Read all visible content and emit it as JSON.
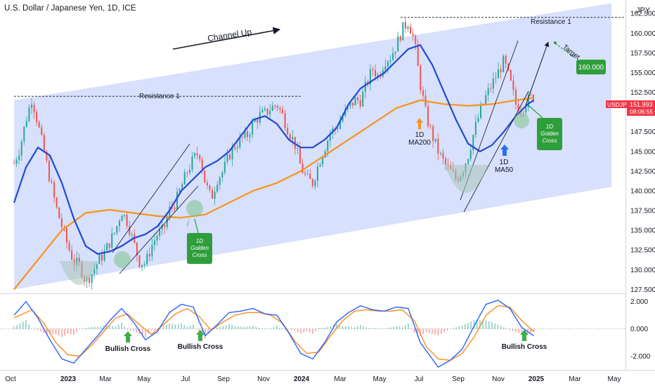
{
  "header": {
    "title": "U.S. Dollar / Japanese Yen, 1D, ICE",
    "currency": "JPY"
  },
  "price_tag": {
    "symbol": "USDJPY",
    "price": "151.993",
    "countdown": "08:06:55"
  },
  "annotations": {
    "channel_up": "Channel Up",
    "resistance_left": "Resistance 1",
    "resistance_right": "Resistance 1",
    "target_word": "Target",
    "target_value": "160.000",
    "ma200_label": [
      "1D",
      "MA200"
    ],
    "ma50_label": [
      "1D",
      "MA50"
    ],
    "golden_cross_1": [
      "1D",
      "Golden",
      "Cross"
    ],
    "golden_cross_2": [
      "1D",
      "Golden",
      "Cross"
    ],
    "bullish_cross_1": "Bullish Cross",
    "bullish_cross_2": "Bullish Cross",
    "bullish_cross_3": "Bullish Cross"
  },
  "colors": {
    "channel_fill": "#c9d6fb",
    "ma50": "#2249d3",
    "ma200": "#f7931a",
    "up_candle": "#26a69a",
    "down_candle": "#ef5350",
    "green_box": "#2e9e3a",
    "green_arrow": "#3cae4a",
    "orange_arrow": "#f7931a",
    "blue_arrow": "#2a6cf0",
    "price_tag": "#f23645",
    "macd": "#2962ff",
    "signal": "#ff8a1c"
  },
  "chart_data": {
    "type": "candlestick",
    "title": "U.S. Dollar / Japanese Yen, 1D, ICE",
    "x_ticks": [
      "Oct",
      "2023",
      "Mar",
      "May",
      "Jul",
      "Sep",
      "Nov",
      "2024",
      "Mar",
      "May",
      "Jul",
      "Sep",
      "Nov",
      "2025",
      "Mar",
      "May"
    ],
    "y_ticks": [
      "162.500",
      "160.000",
      "157.500",
      "155.000",
      "152.500",
      "150.000",
      "147.500",
      "145.000",
      "142.500",
      "140.000",
      "137.500",
      "135.000",
      "132.500",
      "130.000",
      "127.500"
    ],
    "ylim": [
      127,
      163.5
    ],
    "price_path": [
      [
        0,
        143.5
      ],
      [
        1,
        145.5
      ],
      [
        2,
        149.0
      ],
      [
        3,
        151.8
      ],
      [
        4,
        148.5
      ],
      [
        5,
        145.0
      ],
      [
        6,
        141.5
      ],
      [
        7,
        138.0
      ],
      [
        8,
        135.5
      ],
      [
        9,
        133.0
      ],
      [
        10,
        131.0
      ],
      [
        11,
        130.5
      ],
      [
        12,
        128.5
      ],
      [
        13,
        129.5
      ],
      [
        14,
        131.0
      ],
      [
        15,
        132.0
      ],
      [
        16,
        133.5
      ],
      [
        17,
        135.0
      ],
      [
        18,
        137.5
      ],
      [
        19,
        136.0
      ],
      [
        20,
        133.5
      ],
      [
        21,
        131.0
      ],
      [
        22,
        130.8
      ],
      [
        23,
        133.0
      ],
      [
        24,
        134.5
      ],
      [
        25,
        135.0
      ],
      [
        26,
        137.5
      ],
      [
        27,
        138.5
      ],
      [
        28,
        140.5
      ],
      [
        29,
        142.5
      ],
      [
        30,
        144.0
      ],
      [
        31,
        145.0
      ],
      [
        32,
        141.0
      ],
      [
        33,
        139.0
      ],
      [
        34,
        141.5
      ],
      [
        35,
        142.5
      ],
      [
        36,
        144.5
      ],
      [
        37,
        145.8
      ],
      [
        38,
        146.5
      ],
      [
        39,
        147.0
      ],
      [
        40,
        148.5
      ],
      [
        41,
        149.5
      ],
      [
        42,
        149.8
      ],
      [
        43,
        150.5
      ],
      [
        44,
        151.0
      ],
      [
        45,
        149.5
      ],
      [
        46,
        147.5
      ],
      [
        47,
        146.0
      ],
      [
        48,
        143.0
      ],
      [
        49,
        141.5
      ],
      [
        50,
        141.0
      ],
      [
        51,
        143.5
      ],
      [
        52,
        145.5
      ],
      [
        53,
        147.5
      ],
      [
        54,
        148.0
      ],
      [
        55,
        149.5
      ],
      [
        56,
        150.5
      ],
      [
        57,
        151.5
      ],
      [
        58,
        151.5
      ],
      [
        59,
        153.5
      ],
      [
        60,
        155.5
      ],
      [
        61,
        154.5
      ],
      [
        62,
        156.5
      ],
      [
        63,
        157.0
      ],
      [
        64,
        158.5
      ],
      [
        65,
        160.5
      ],
      [
        66,
        161.5
      ],
      [
        67,
        159.0
      ],
      [
        68,
        153.5
      ],
      [
        69,
        149.5
      ],
      [
        70,
        147.0
      ],
      [
        71,
        145.0
      ],
      [
        72,
        143.5
      ],
      [
        73,
        142.5
      ],
      [
        74,
        141.5
      ],
      [
        75,
        142.5
      ],
      [
        76,
        144.5
      ],
      [
        77,
        147.5
      ],
      [
        78,
        150.0
      ],
      [
        79,
        152.0
      ],
      [
        80,
        153.5
      ],
      [
        81,
        155.0
      ],
      [
        82,
        156.5
      ],
      [
        83,
        154.0
      ],
      [
        84,
        151.0
      ],
      [
        85,
        150.5
      ],
      [
        86,
        151.5
      ],
      [
        87,
        152.0
      ]
    ],
    "ma200_path": [
      [
        0,
        127.5
      ],
      [
        8,
        135.0
      ],
      [
        12,
        137.2
      ],
      [
        16,
        137.6
      ],
      [
        20,
        137.2
      ],
      [
        24,
        136.8
      ],
      [
        28,
        136.6
      ],
      [
        32,
        137.0
      ],
      [
        36,
        138.5
      ],
      [
        40,
        140.0
      ],
      [
        44,
        141.0
      ],
      [
        48,
        142.5
      ],
      [
        52,
        144.5
      ],
      [
        56,
        146.5
      ],
      [
        60,
        148.5
      ],
      [
        64,
        150.5
      ],
      [
        68,
        151.5
      ],
      [
        72,
        151.0
      ],
      [
        76,
        150.8
      ],
      [
        80,
        151.0
      ],
      [
        84,
        151.5
      ],
      [
        87,
        151.8
      ]
    ],
    "ma50_path": [
      [
        0,
        138.5
      ],
      [
        2,
        143.0
      ],
      [
        4,
        145.5
      ],
      [
        6,
        144.5
      ],
      [
        8,
        141.0
      ],
      [
        10,
        136.5
      ],
      [
        12,
        133.0
      ],
      [
        14,
        132.0
      ],
      [
        16,
        132.3
      ],
      [
        18,
        133.0
      ],
      [
        20,
        134.0
      ],
      [
        22,
        134.5
      ],
      [
        24,
        135.5
      ],
      [
        26,
        137.5
      ],
      [
        28,
        140.0
      ],
      [
        30,
        141.5
      ],
      [
        32,
        143.0
      ],
      [
        34,
        143.8
      ],
      [
        36,
        145.0
      ],
      [
        38,
        147.0
      ],
      [
        40,
        149.0
      ],
      [
        42,
        149.5
      ],
      [
        44,
        148.5
      ],
      [
        46,
        146.5
      ],
      [
        48,
        145.5
      ],
      [
        50,
        145.5
      ],
      [
        52,
        146.5
      ],
      [
        54,
        148.0
      ],
      [
        56,
        151.0
      ],
      [
        58,
        153.0
      ],
      [
        60,
        154.0
      ],
      [
        62,
        155.0
      ],
      [
        64,
        156.5
      ],
      [
        66,
        158.0
      ],
      [
        68,
        158.5
      ],
      [
        70,
        156.0
      ],
      [
        72,
        152.5
      ],
      [
        74,
        149.0
      ],
      [
        76,
        146.0
      ],
      [
        78,
        145.0
      ],
      [
        80,
        145.8
      ],
      [
        82,
        147.5
      ],
      [
        84,
        149.5
      ],
      [
        86,
        151.0
      ],
      [
        87,
        151.5
      ]
    ],
    "channel_top": [
      [
        0,
        151.5
      ],
      [
        100,
        163.8
      ]
    ],
    "channel_bottom": [
      [
        0,
        127.5
      ],
      [
        100,
        140.5
      ]
    ],
    "resistance_1": 152.0,
    "resistance_2": 162.0,
    "target": 160.0,
    "macd_ticks": [
      "2.000",
      "0.000",
      "-2.000"
    ],
    "macd_ylim": [
      -3.0,
      2.5
    ],
    "macd_path": [
      [
        0,
        1.0
      ],
      [
        2,
        2.0
      ],
      [
        4,
        0.8
      ],
      [
        6,
        -0.8
      ],
      [
        8,
        -2.2
      ],
      [
        10,
        -2.5
      ],
      [
        12,
        -1.5
      ],
      [
        14,
        -0.5
      ],
      [
        16,
        0.6
      ],
      [
        18,
        1.5
      ],
      [
        20,
        0.5
      ],
      [
        22,
        -0.8
      ],
      [
        24,
        -0.2
      ],
      [
        26,
        1.2
      ],
      [
        28,
        1.8
      ],
      [
        30,
        1.6
      ],
      [
        32,
        -0.5
      ],
      [
        34,
        0.3
      ],
      [
        36,
        1.2
      ],
      [
        38,
        1.3
      ],
      [
        40,
        1.5
      ],
      [
        42,
        1.1
      ],
      [
        44,
        1.0
      ],
      [
        46,
        -0.3
      ],
      [
        48,
        -1.8
      ],
      [
        50,
        -2.2
      ],
      [
        52,
        -1.0
      ],
      [
        54,
        0.5
      ],
      [
        56,
        1.2
      ],
      [
        58,
        1.7
      ],
      [
        60,
        1.4
      ],
      [
        62,
        1.3
      ],
      [
        64,
        1.6
      ],
      [
        66,
        1.5
      ],
      [
        68,
        -1.0
      ],
      [
        70,
        -2.2
      ],
      [
        71,
        -2.8
      ],
      [
        73,
        -2.3
      ],
      [
        75,
        -1.5
      ],
      [
        77,
        0.2
      ],
      [
        79,
        1.8
      ],
      [
        81,
        2.1
      ],
      [
        83,
        1.5
      ],
      [
        85,
        0.1
      ],
      [
        87,
        -0.5
      ]
    ],
    "signal_path": [
      [
        0,
        0.8
      ],
      [
        3,
        1.4
      ],
      [
        5,
        0.4
      ],
      [
        7,
        -1.0
      ],
      [
        9,
        -1.9
      ],
      [
        11,
        -2.0
      ],
      [
        13,
        -1.2
      ],
      [
        15,
        -0.2
      ],
      [
        17,
        0.8
      ],
      [
        19,
        1.1
      ],
      [
        21,
        0.3
      ],
      [
        23,
        -0.4
      ],
      [
        25,
        0.3
      ],
      [
        27,
        1.1
      ],
      [
        29,
        1.5
      ],
      [
        31,
        0.9
      ],
      [
        33,
        -0.1
      ],
      [
        35,
        0.5
      ],
      [
        37,
        1.0
      ],
      [
        39,
        1.2
      ],
      [
        41,
        1.2
      ],
      [
        43,
        1.0
      ],
      [
        45,
        0.4
      ],
      [
        47,
        -0.9
      ],
      [
        49,
        -1.8
      ],
      [
        51,
        -1.7
      ],
      [
        53,
        -0.5
      ],
      [
        55,
        0.6
      ],
      [
        57,
        1.3
      ],
      [
        59,
        1.4
      ],
      [
        61,
        1.3
      ],
      [
        63,
        1.3
      ],
      [
        65,
        1.4
      ],
      [
        67,
        0.6
      ],
      [
        69,
        -1.3
      ],
      [
        71,
        -2.2
      ],
      [
        73,
        -2.3
      ],
      [
        75,
        -1.8
      ],
      [
        77,
        -0.6
      ],
      [
        79,
        1.0
      ],
      [
        81,
        1.7
      ],
      [
        83,
        1.6
      ],
      [
        85,
        0.6
      ],
      [
        87,
        -0.2
      ]
    ]
  }
}
